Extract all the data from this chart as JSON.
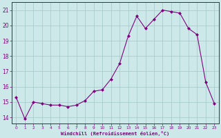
{
  "x": [
    0,
    1,
    2,
    3,
    4,
    5,
    6,
    7,
    8,
    9,
    10,
    11,
    12,
    13,
    14,
    15,
    16,
    17,
    18,
    19,
    20,
    21,
    22,
    23
  ],
  "y": [
    15.3,
    13.9,
    15.0,
    14.9,
    14.8,
    14.8,
    14.7,
    14.8,
    15.1,
    15.7,
    15.8,
    16.5,
    17.5,
    19.3,
    20.6,
    19.8,
    20.4,
    21.0,
    20.9,
    20.8,
    19.8,
    19.4,
    16.3,
    14.9
  ],
  "line_color": "#800080",
  "marker": "D",
  "marker_size": 2,
  "bg_color": "#cce8e8",
  "grid_color": "#aacccc",
  "xlabel": "Windchill (Refroidissement éolien,°C)",
  "ylabel_ticks": [
    14,
    15,
    16,
    17,
    18,
    19,
    20,
    21
  ],
  "xlabel_ticks": [
    0,
    1,
    2,
    3,
    4,
    5,
    6,
    7,
    8,
    9,
    10,
    11,
    12,
    13,
    14,
    15,
    16,
    17,
    18,
    19,
    20,
    21,
    22,
    23
  ],
  "ylim": [
    13.6,
    21.5
  ],
  "xlim": [
    -0.5,
    23.5
  ],
  "tick_color": "#800080",
  "label_color": "#800080",
  "spine_color": "#800080"
}
